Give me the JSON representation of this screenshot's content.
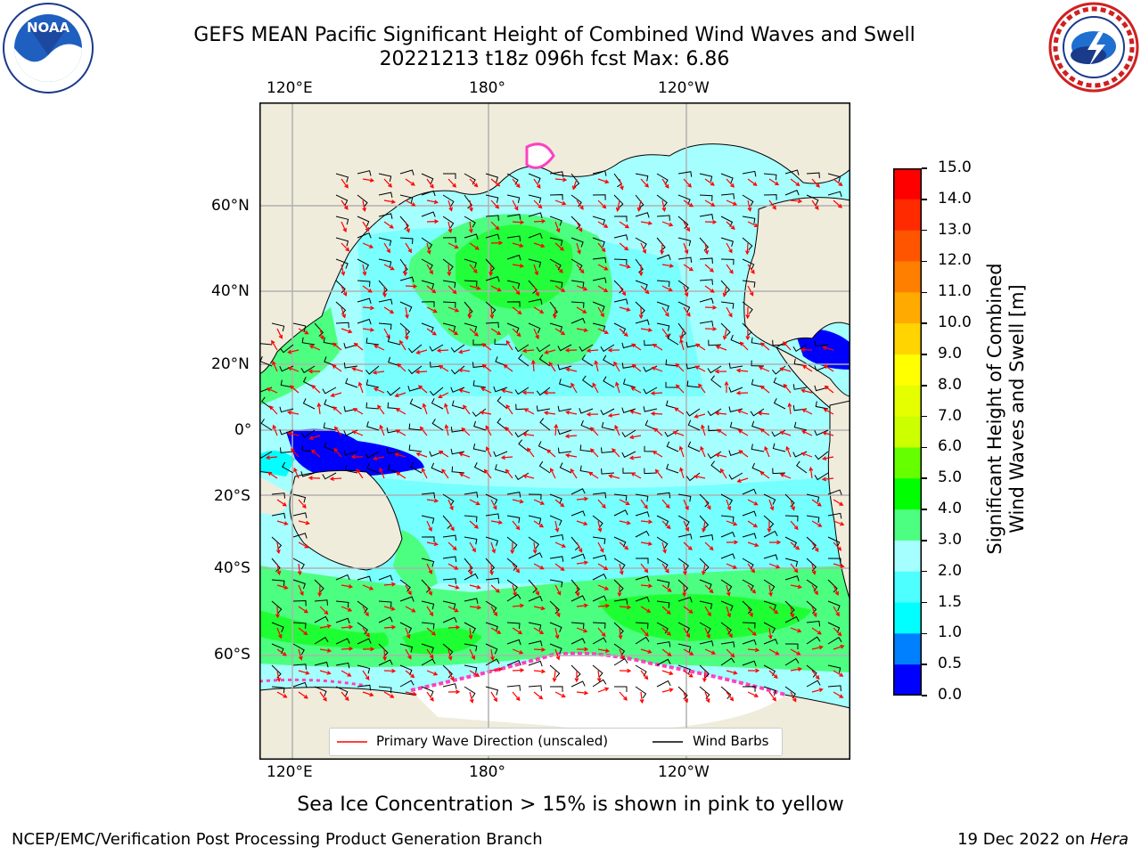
{
  "title": {
    "line1": "GEFS MEAN Pacific Significant Height of Combined Wind Waves and Swell",
    "line2": "20221213 t18z 096h fcst   Max: 6.86"
  },
  "logos": {
    "left": "noaa-logo",
    "right": "nws-logo"
  },
  "map": {
    "lon_labels_top": [
      "120°E",
      "180°",
      "120°W"
    ],
    "lon_labels_bottom": [
      "120°E",
      "180°",
      "120°W"
    ],
    "lat_labels": [
      "60°N",
      "40°N",
      "20°N",
      "0°",
      "20°S",
      "40°S",
      "60°S"
    ],
    "legend": {
      "wave_label": "Primary Wave Direction (unscaled)",
      "barb_label": "Wind Barbs",
      "wave_color": "#ff0000",
      "barb_color": "#000000"
    },
    "colors": {
      "land": "#efecdc",
      "sea_ice": "#ffffff",
      "grid": "#b0b0b0"
    }
  },
  "colorbar": {
    "ticks": [
      "15.0",
      "14.0",
      "13.0",
      "12.0",
      "11.0",
      "10.0",
      "9.0",
      "8.0",
      "7.0",
      "6.0",
      "5.0",
      "4.0",
      "3.0",
      "2.0",
      "1.5",
      "1.0",
      "0.5",
      "0.0"
    ],
    "label_line1": "Significant Height of Combined",
    "label_line2": "Wind Waves and Swell [m]",
    "colors_top_to_bottom": [
      "#ff0000",
      "#ff2a00",
      "#ff5500",
      "#ff7f00",
      "#ffaa00",
      "#ffd400",
      "#ffff00",
      "#e5ff00",
      "#ccff00",
      "#66ff00",
      "#00ff00",
      "#4dff80",
      "#a6ffff",
      "#4dffff",
      "#00ffff",
      "#0080ff",
      "#0000ff"
    ]
  },
  "caption": "Sea Ice Concentration > 15% is shown in pink to yellow",
  "footer": {
    "left": "NCEP/EMC/Verification Post Processing Product Generation Branch",
    "right_date": "19 Dec 2022 on ",
    "right_host": "Hera"
  }
}
